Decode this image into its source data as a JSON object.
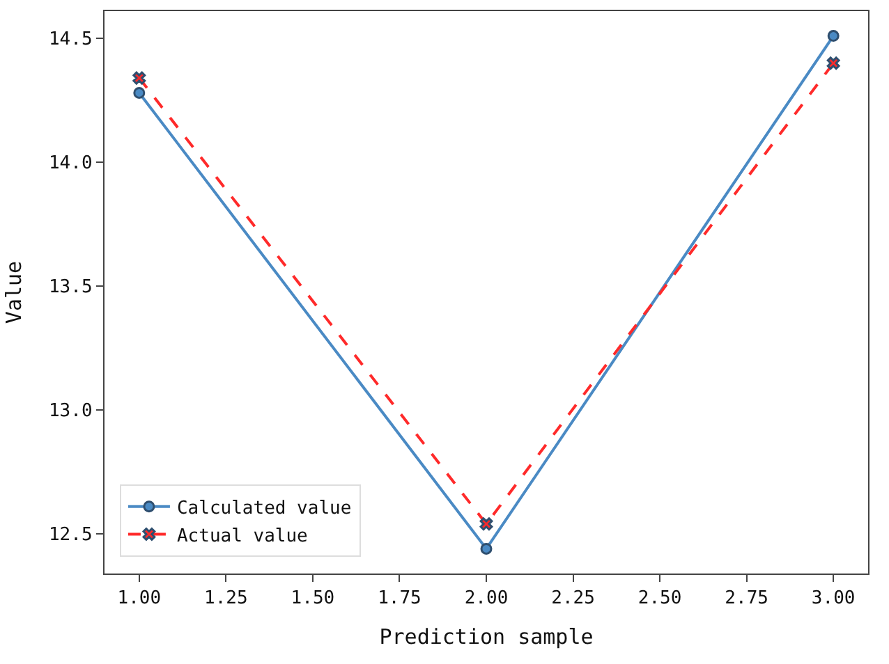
{
  "chart_data": {
    "type": "line",
    "xlabel": "Prediction sample",
    "ylabel": "Value",
    "x": [
      1,
      2,
      3
    ],
    "series": [
      {
        "name": "Calculated value",
        "color": "#4a8ac4",
        "values": [
          14.28,
          12.44,
          14.51
        ],
        "marker": "circle",
        "line_style": "solid"
      },
      {
        "name": "Actual value",
        "color": "#ff2a2a",
        "values": [
          14.34,
          12.54,
          14.4
        ],
        "marker": "cross",
        "line_style": "dashed"
      }
    ],
    "xlim": [
      0.9,
      3.1
    ],
    "xticks": [
      {
        "value": 1,
        "label": "1.00"
      },
      1.25,
      {
        "value": 1.5,
        "label": "1.50"
      },
      1.75,
      {
        "value": 2,
        "label": "2.00"
      },
      2.25,
      {
        "value": 2.5,
        "label": "2.50"
      },
      2.75,
      {
        "value": 3,
        "label": "3.00"
      }
    ],
    "ylim": [
      12.34,
      14.61
    ],
    "yticks": [
      12.5,
      {
        "value": 13,
        "label": "13.0"
      },
      13.5,
      {
        "value": 14,
        "label": "14.0"
      },
      14.5
    ],
    "legend": "bottom left"
  }
}
